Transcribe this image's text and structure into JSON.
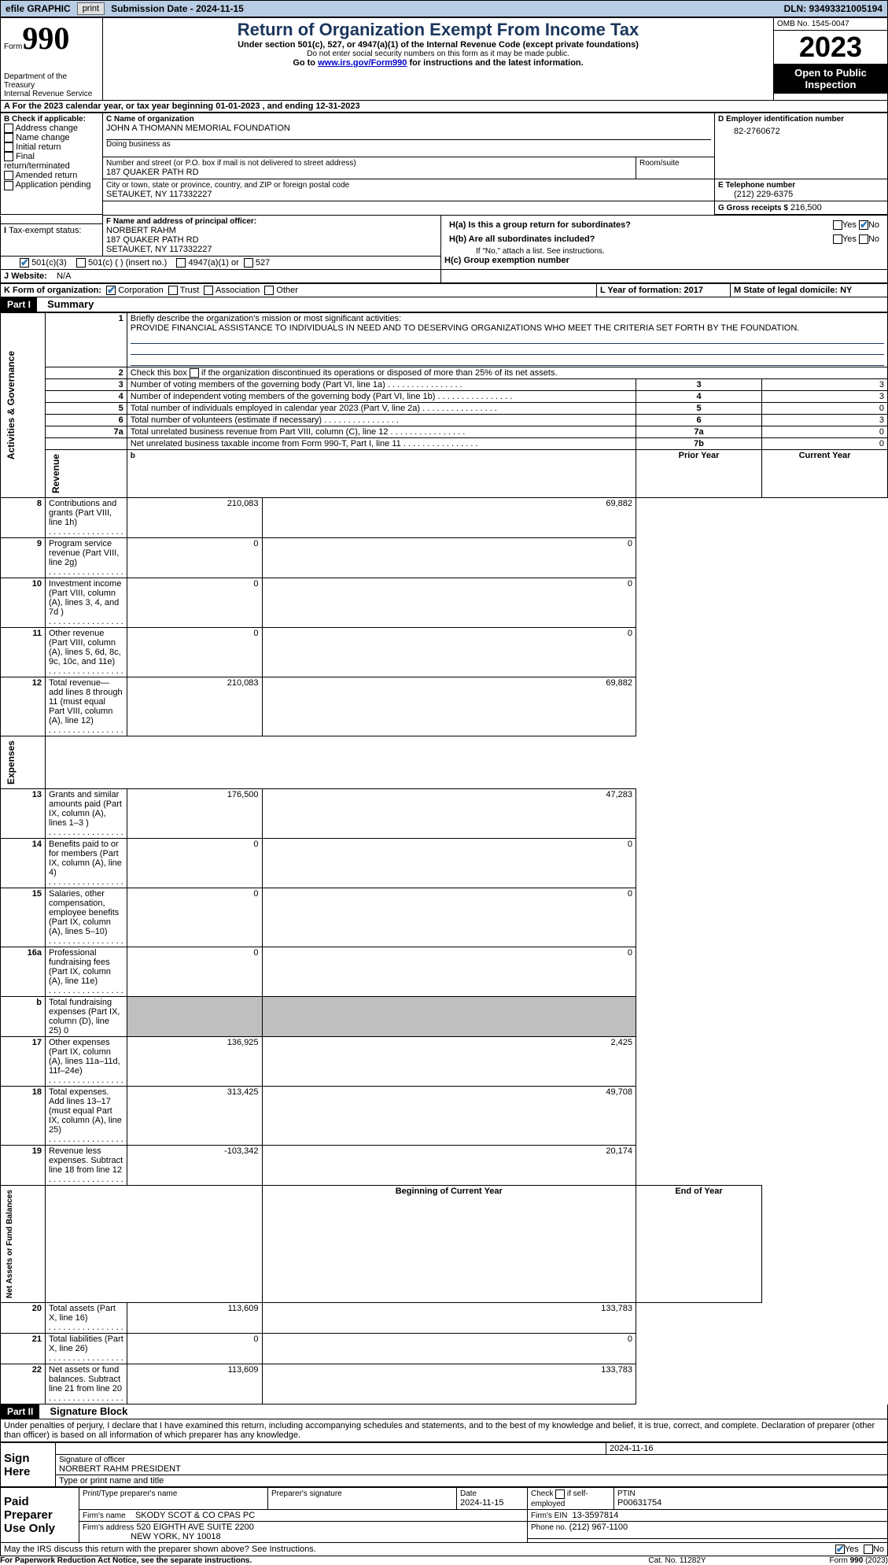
{
  "topbar": {
    "efile": "efile GRAPHIC",
    "print": "print",
    "subdate_label": "Submission Date - 2024-11-15",
    "dln_label": "DLN: 93493321005194"
  },
  "header": {
    "form_label": "Form",
    "form_no": "990",
    "dept1": "Department of the Treasury",
    "dept2": "Internal Revenue Service",
    "title": "Return of Organization Exempt From Income Tax",
    "sub1": "Under section 501(c), 527, or 4947(a)(1) of the Internal Revenue Code (except private foundations)",
    "sub2": "Do not enter social security numbers on this form as it may be made public.",
    "sub3_pre": "Go to ",
    "sub3_link": "www.irs.gov/Form990",
    "sub3_post": " for instructions and the latest information.",
    "omb": "OMB No. 1545-0047",
    "year": "2023",
    "open": "Open to Public Inspection"
  },
  "period": {
    "line": "For the 2023 calendar year, or tax year beginning 01-01-2023   , and ending 12-31-2023"
  },
  "boxB": {
    "label": "B Check if applicable:",
    "items": [
      "Address change",
      "Name change",
      "Initial return",
      "Final return/terminated",
      "Amended return",
      "Application pending"
    ]
  },
  "boxC": {
    "name_lbl": "C Name of organization",
    "name": "JOHN A THOMANN MEMORIAL FOUNDATION",
    "dba_lbl": "Doing business as",
    "street_lbl": "Number and street (or P.O. box if mail is not delivered to street address)",
    "street": "187 QUAKER PATH RD",
    "room_lbl": "Room/suite",
    "city_lbl": "City or town, state or province, country, and ZIP or foreign postal code",
    "city": "SETAUKET, NY  117332227"
  },
  "boxD": {
    "lbl": "D Employer identification number",
    "val": "82-2760672"
  },
  "boxE": {
    "lbl": "E Telephone number",
    "val": "(212) 229-6375"
  },
  "boxG": {
    "lbl": "G Gross receipts $",
    "val": "216,500"
  },
  "boxF": {
    "lbl": "F  Name and address of principal officer:",
    "name": "NORBERT RAHM",
    "street": "187 QUAKER PATH RD",
    "city": "SETAUKET, NY  117332227"
  },
  "boxH": {
    "a": "H(a)  Is this a group return for subordinates?",
    "b": "H(b)  Are all subordinates included?",
    "bnote": "If \"No,\" attach a list. See instructions.",
    "c": "H(c)  Group exemption number",
    "yes": "Yes",
    "no": "No"
  },
  "boxI": {
    "lbl": "Tax-exempt status:",
    "o1": "501(c)(3)",
    "o2": "501(c) (  ) (insert no.)",
    "o3": "4947(a)(1) or",
    "o4": "527"
  },
  "boxJ": {
    "lbl": "Website:",
    "val": "N/A"
  },
  "boxK": {
    "lbl": "K Form of organization:",
    "o1": "Corporation",
    "o2": "Trust",
    "o3": "Association",
    "o4": "Other"
  },
  "boxL": {
    "lbl": "L Year of formation: 2017"
  },
  "boxM": {
    "lbl": "M State of legal domicile: NY"
  },
  "part1": {
    "hdr": "Part I",
    "title": "Summary",
    "l1a": "Briefly describe the organization's mission or most significant activities:",
    "l1b": "PROVIDE FINANCIAL ASSISTANCE TO INDIVIDUALS IN NEED AND TO DESERVING ORGANIZATIONS WHO MEET THE CRITERIA SET FORTH BY THE FOUNDATION.",
    "l2": "Check this box        if the organization discontinued its operations or disposed of more than 25% of its net assets.",
    "rows_ag": [
      {
        "n": "3",
        "t": "Number of voting members of the governing body (Part VI, line 1a)",
        "box": "3",
        "v": "3"
      },
      {
        "n": "4",
        "t": "Number of independent voting members of the governing body (Part VI, line 1b)",
        "box": "4",
        "v": "3"
      },
      {
        "n": "5",
        "t": "Total number of individuals employed in calendar year 2023 (Part V, line 2a)",
        "box": "5",
        "v": "0"
      },
      {
        "n": "6",
        "t": "Total number of volunteers (estimate if necessary)",
        "box": "6",
        "v": "3"
      },
      {
        "n": "7a",
        "t": "Total unrelated business revenue from Part VIII, column (C), line 12",
        "box": "7a",
        "v": "0"
      },
      {
        "n": "",
        "t": "Net unrelated business taxable income from Form 990-T, Part I, line 11",
        "box": "7b",
        "v": "0"
      }
    ],
    "py": "Prior Year",
    "cy": "Current Year",
    "rows_rev": [
      {
        "n": "8",
        "t": "Contributions and grants (Part VIII, line 1h)",
        "p": "210,083",
        "c": "69,882"
      },
      {
        "n": "9",
        "t": "Program service revenue (Part VIII, line 2g)",
        "p": "0",
        "c": "0"
      },
      {
        "n": "10",
        "t": "Investment income (Part VIII, column (A), lines 3, 4, and 7d )",
        "p": "0",
        "c": "0"
      },
      {
        "n": "11",
        "t": "Other revenue (Part VIII, column (A), lines 5, 6d, 8c, 9c, 10c, and 11e)",
        "p": "0",
        "c": "0"
      },
      {
        "n": "12",
        "t": "Total revenue—add lines 8 through 11 (must equal Part VIII, column (A), line 12)",
        "p": "210,083",
        "c": "69,882"
      }
    ],
    "rows_exp": [
      {
        "n": "13",
        "t": "Grants and similar amounts paid (Part IX, column (A), lines 1–3 )",
        "p": "176,500",
        "c": "47,283"
      },
      {
        "n": "14",
        "t": "Benefits paid to or for members (Part IX, column (A), line 4)",
        "p": "0",
        "c": "0"
      },
      {
        "n": "15",
        "t": "Salaries, other compensation, employee benefits (Part IX, column (A), lines 5–10)",
        "p": "0",
        "c": "0"
      },
      {
        "n": "16a",
        "t": "Professional fundraising fees (Part IX, column (A), line 11e)",
        "p": "0",
        "c": "0"
      },
      {
        "n": "b",
        "t": "Total fundraising expenses (Part IX, column (D), line 25) 0",
        "p": "",
        "c": "",
        "grey": true
      },
      {
        "n": "17",
        "t": "Other expenses (Part IX, column (A), lines 11a–11d, 11f–24e)",
        "p": "136,925",
        "c": "2,425"
      },
      {
        "n": "18",
        "t": "Total expenses. Add lines 13–17 (must equal Part IX, column (A), line 25)",
        "p": "313,425",
        "c": "49,708"
      },
      {
        "n": "19",
        "t": "Revenue less expenses. Subtract line 18 from line 12",
        "p": "-103,342",
        "c": "20,174"
      }
    ],
    "bcy": "Beginning of Current Year",
    "eoy": "End of Year",
    "rows_na": [
      {
        "n": "20",
        "t": "Total assets (Part X, line 16)",
        "p": "113,609",
        "c": "133,783"
      },
      {
        "n": "21",
        "t": "Total liabilities (Part X, line 26)",
        "p": "0",
        "c": "0"
      },
      {
        "n": "22",
        "t": "Net assets or fund balances. Subtract line 21 from line 20",
        "p": "113,609",
        "c": "133,783"
      }
    ],
    "side_ag": "Activities & Governance",
    "side_rev": "Revenue",
    "side_exp": "Expenses",
    "side_na": "Net Assets or Fund Balances"
  },
  "part2": {
    "hdr": "Part II",
    "title": "Signature Block",
    "perjury": "Under penalties of perjury, I declare that I have examined this return, including accompanying schedules and statements, and to the best of my knowledge and belief, it is true, correct, and complete. Declaration of preparer (other than officer) is based on all information of which preparer has any knowledge.",
    "sign_here": "Sign Here",
    "sig_off": "Signature of officer",
    "sig_name": "NORBERT RAHM PRESIDENT",
    "sig_type": "Type or print name and title",
    "sig_date": "2024-11-16",
    "date_lbl": "Date",
    "paid": "Paid Preparer Use Only",
    "pt_name_lbl": "Print/Type preparer's name",
    "pt_sig_lbl": "Preparer's signature",
    "pt_date": "2024-11-15",
    "pt_check": "Check        if self-employed",
    "ptin_lbl": "PTIN",
    "ptin": "P00631754",
    "firm_lbl": "Firm's name",
    "firm": "SKODY SCOT & CO CPAS PC",
    "firm_ein_lbl": "Firm's EIN",
    "firm_ein": "13-3597814",
    "firm_addr_lbl": "Firm's address",
    "firm_addr1": "520 EIGHTH AVE SUITE 2200",
    "firm_addr2": "NEW YORK, NY  10018",
    "phone_lbl": "Phone no.",
    "phone": "(212) 967-1100",
    "discuss": "May the IRS discuss this return with the preparer shown above? See Instructions.",
    "yes": "Yes",
    "no": "No"
  },
  "footer": {
    "pra": "For Paperwork Reduction Act Notice, see the separate instructions.",
    "cat": "Cat. No. 11282Y",
    "form": "Form 990 (2023)"
  },
  "colors": {
    "topbar_bg": "#b8cce4",
    "title_color": "#1b365d",
    "check_color": "#2e75b6"
  }
}
